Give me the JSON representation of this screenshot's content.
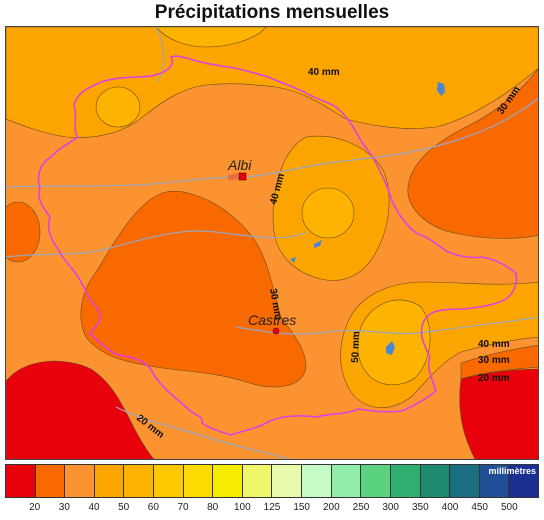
{
  "title": "Précipitations mensuelles",
  "map": {
    "cities": [
      {
        "name": "Albi",
        "marker": "square"
      },
      {
        "name": "Castres",
        "marker": "circle"
      }
    ],
    "contour_labels": [
      "40 mm",
      "30 mm",
      "40 mm",
      "30 mm",
      "50 mm",
      "40 mm",
      "30 mm",
      "20 mm",
      "20 mm"
    ],
    "colors": {
      "boundary": "#e040e0",
      "rivers": "#9aa6c0",
      "lakes": "#4a86d6"
    }
  },
  "legend": {
    "units": "millimètres",
    "ticks": [
      "20",
      "30",
      "40",
      "50",
      "60",
      "70",
      "80",
      "100",
      "125",
      "150",
      "200",
      "250",
      "300",
      "350",
      "400",
      "450",
      "500"
    ],
    "colors": [
      "#e8000b",
      "#f86a00",
      "#fb9430",
      "#fca500",
      "#fcb400",
      "#fcc800",
      "#fcdc00",
      "#f6ec00",
      "#eef66a",
      "#e8fbac",
      "#c6fcc6",
      "#92ecaa",
      "#5ad27e",
      "#2fb070",
      "#1f8a6e",
      "#1a6e82",
      "#204f95",
      "#1a2f90"
    ]
  }
}
